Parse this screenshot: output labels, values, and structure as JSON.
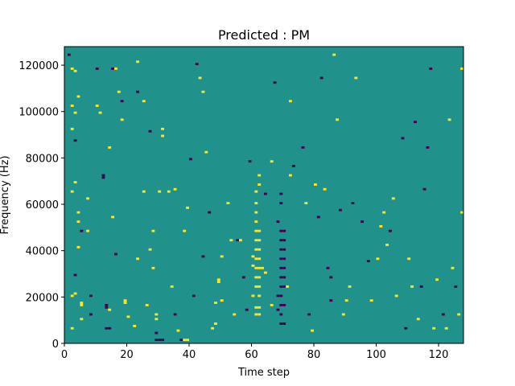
{
  "chart_data": {
    "type": "heatmap",
    "title": "Predicted : PM",
    "xlabel": "Time step",
    "ylabel": "Frequency (Hz)",
    "xlim": [
      0,
      128
    ],
    "ylim": [
      0,
      128000
    ],
    "x_ticks": [
      0,
      20,
      40,
      60,
      80,
      100,
      120
    ],
    "y_ticks": [
      0,
      20000,
      40000,
      60000,
      80000,
      100000,
      120000
    ],
    "grid": false,
    "legend": "none",
    "colors": {
      "background": "#21918c",
      "high": "#fde725",
      "low": "#440154",
      "frame": "#000000"
    },
    "n_frequency_bins": 128,
    "frequency_bin_width_hz": 1000,
    "cells": [
      {
        "t": 1,
        "f": 124,
        "v": "low"
      },
      {
        "t": 2,
        "f": 118,
        "v": "high"
      },
      {
        "t": 3,
        "f": 117,
        "v": "high"
      },
      {
        "t": 4,
        "f": 106,
        "v": "high"
      },
      {
        "t": 2,
        "f": 102,
        "v": "high"
      },
      {
        "t": 3,
        "f": 99,
        "v": "high"
      },
      {
        "t": 2,
        "f": 92,
        "v": "high"
      },
      {
        "t": 3,
        "f": 87,
        "v": "low"
      },
      {
        "t": 3,
        "f": 69,
        "v": "high"
      },
      {
        "t": 2,
        "f": 65,
        "v": "high"
      },
      {
        "t": 4,
        "f": 56,
        "v": "high"
      },
      {
        "t": 4,
        "f": 52,
        "v": "high"
      },
      {
        "t": 5,
        "f": 48,
        "v": "low"
      },
      {
        "t": 4,
        "f": 41,
        "v": "high"
      },
      {
        "t": 3,
        "f": 29,
        "v": "low"
      },
      {
        "t": 3,
        "f": 21,
        "v": "high"
      },
      {
        "t": 2,
        "f": 20,
        "v": "high"
      },
      {
        "t": 5,
        "f": 17,
        "v": "high"
      },
      {
        "t": 5,
        "f": 16,
        "v": "high"
      },
      {
        "t": 2,
        "f": 6,
        "v": "high"
      },
      {
        "t": 5,
        "f": 10,
        "v": "high"
      },
      {
        "t": 7,
        "f": 48,
        "v": "high"
      },
      {
        "t": 7,
        "f": 62,
        "v": "high"
      },
      {
        "t": 8,
        "f": 12,
        "v": "low"
      },
      {
        "t": 8,
        "f": 20,
        "v": "low"
      },
      {
        "t": 10,
        "f": 102,
        "v": "high"
      },
      {
        "t": 10,
        "f": 118,
        "v": "low"
      },
      {
        "t": 11,
        "f": 99,
        "v": "high"
      },
      {
        "t": 12,
        "f": 72,
        "v": "low"
      },
      {
        "t": 12,
        "f": 71,
        "v": "low"
      },
      {
        "t": 13,
        "f": 16,
        "v": "low"
      },
      {
        "t": 13,
        "f": 15,
        "v": "low"
      },
      {
        "t": 13,
        "f": 6,
        "v": "low"
      },
      {
        "t": 14,
        "f": 14,
        "v": "high"
      },
      {
        "t": 14,
        "f": 6,
        "v": "low"
      },
      {
        "t": 15,
        "f": 118,
        "v": "low"
      },
      {
        "t": 16,
        "f": 118,
        "v": "high"
      },
      {
        "t": 14,
        "f": 84,
        "v": "high"
      },
      {
        "t": 15,
        "f": 54,
        "v": "high"
      },
      {
        "t": 16,
        "f": 38,
        "v": "low"
      },
      {
        "t": 17,
        "f": 108,
        "v": "high"
      },
      {
        "t": 18,
        "f": 104,
        "v": "low"
      },
      {
        "t": 18,
        "f": 96,
        "v": "high"
      },
      {
        "t": 19,
        "f": 18,
        "v": "high"
      },
      {
        "t": 19,
        "f": 17,
        "v": "high"
      },
      {
        "t": 20,
        "f": 11,
        "v": "high"
      },
      {
        "t": 22,
        "f": 7,
        "v": "high"
      },
      {
        "t": 23,
        "f": 36,
        "v": "high"
      },
      {
        "t": 23,
        "f": 108,
        "v": "low"
      },
      {
        "t": 23,
        "f": 121,
        "v": "high"
      },
      {
        "t": 25,
        "f": 104,
        "v": "high"
      },
      {
        "t": 25,
        "f": 65,
        "v": "high"
      },
      {
        "t": 26,
        "f": 16,
        "v": "high"
      },
      {
        "t": 27,
        "f": 91,
        "v": "low"
      },
      {
        "t": 27,
        "f": 40,
        "v": "high"
      },
      {
        "t": 28,
        "f": 48,
        "v": "high"
      },
      {
        "t": 28,
        "f": 32,
        "v": "high"
      },
      {
        "t": 29,
        "f": 12,
        "v": "high"
      },
      {
        "t": 29,
        "f": 10,
        "v": "high"
      },
      {
        "t": 29,
        "f": 4,
        "v": "low"
      },
      {
        "t": 29,
        "f": 1,
        "v": "low"
      },
      {
        "t": 30,
        "f": 1,
        "v": "low"
      },
      {
        "t": 31,
        "f": 1,
        "v": "low"
      },
      {
        "t": 30,
        "f": 65,
        "v": "high"
      },
      {
        "t": 31,
        "f": 92,
        "v": "high"
      },
      {
        "t": 31,
        "f": 89,
        "v": "high"
      },
      {
        "t": 33,
        "f": 65,
        "v": "high"
      },
      {
        "t": 34,
        "f": 24,
        "v": "high"
      },
      {
        "t": 35,
        "f": 66,
        "v": "high"
      },
      {
        "t": 35,
        "f": 12,
        "v": "low"
      },
      {
        "t": 36,
        "f": 5,
        "v": "high"
      },
      {
        "t": 37,
        "f": 1,
        "v": "low"
      },
      {
        "t": 38,
        "f": 1,
        "v": "high"
      },
      {
        "t": 39,
        "f": 1,
        "v": "high"
      },
      {
        "t": 38,
        "f": 48,
        "v": "high"
      },
      {
        "t": 39,
        "f": 58,
        "v": "high"
      },
      {
        "t": 40,
        "f": 79,
        "v": "low"
      },
      {
        "t": 41,
        "f": 20,
        "v": "low"
      },
      {
        "t": 42,
        "f": 120,
        "v": "low"
      },
      {
        "t": 43,
        "f": 114,
        "v": "high"
      },
      {
        "t": 44,
        "f": 108,
        "v": "high"
      },
      {
        "t": 44,
        "f": 37,
        "v": "low"
      },
      {
        "t": 45,
        "f": 82,
        "v": "high"
      },
      {
        "t": 46,
        "f": 56,
        "v": "low"
      },
      {
        "t": 47,
        "f": 6,
        "v": "high"
      },
      {
        "t": 48,
        "f": 8,
        "v": "high"
      },
      {
        "t": 48,
        "f": 17,
        "v": "high"
      },
      {
        "t": 49,
        "f": 26,
        "v": "high"
      },
      {
        "t": 49,
        "f": 27,
        "v": "high"
      },
      {
        "t": 50,
        "f": 18,
        "v": "high"
      },
      {
        "t": 50,
        "f": 37,
        "v": "high"
      },
      {
        "t": 52,
        "f": 60,
        "v": "high"
      },
      {
        "t": 53,
        "f": 44,
        "v": "high"
      },
      {
        "t": 54,
        "f": 12,
        "v": "high"
      },
      {
        "t": 55,
        "f": 44,
        "v": "low"
      },
      {
        "t": 56,
        "f": 44,
        "v": "high"
      },
      {
        "t": 57,
        "f": 28,
        "v": "low"
      },
      {
        "t": 58,
        "f": 14,
        "v": "low"
      },
      {
        "t": 59,
        "f": 78,
        "v": "low"
      },
      {
        "t": 60,
        "f": 37,
        "v": "high"
      },
      {
        "t": 60,
        "f": 33,
        "v": "high"
      },
      {
        "t": 60,
        "f": 20,
        "v": "high"
      },
      {
        "t": 61,
        "f": 12,
        "v": "high"
      },
      {
        "t": 61,
        "f": 15,
        "v": "high"
      },
      {
        "t": 61,
        "f": 24,
        "v": "high"
      },
      {
        "t": 61,
        "f": 28,
        "v": "high"
      },
      {
        "t": 61,
        "f": 32,
        "v": "high"
      },
      {
        "t": 61,
        "f": 36,
        "v": "high"
      },
      {
        "t": 61,
        "f": 40,
        "v": "high"
      },
      {
        "t": 61,
        "f": 44,
        "v": "high"
      },
      {
        "t": 61,
        "f": 48,
        "v": "high"
      },
      {
        "t": 61,
        "f": 52,
        "v": "high"
      },
      {
        "t": 61,
        "f": 56,
        "v": "high"
      },
      {
        "t": 61,
        "f": 60,
        "v": "high"
      },
      {
        "t": 61,
        "f": 65,
        "v": "high"
      },
      {
        "t": 62,
        "f": 12,
        "v": "high"
      },
      {
        "t": 62,
        "f": 15,
        "v": "high"
      },
      {
        "t": 62,
        "f": 20,
        "v": "high"
      },
      {
        "t": 62,
        "f": 24,
        "v": "high"
      },
      {
        "t": 62,
        "f": 28,
        "v": "high"
      },
      {
        "t": 62,
        "f": 32,
        "v": "high"
      },
      {
        "t": 62,
        "f": 36,
        "v": "high"
      },
      {
        "t": 62,
        "f": 40,
        "v": "high"
      },
      {
        "t": 62,
        "f": 44,
        "v": "high"
      },
      {
        "t": 62,
        "f": 48,
        "v": "high"
      },
      {
        "t": 62,
        "f": 68,
        "v": "high"
      },
      {
        "t": 62,
        "f": 72,
        "v": "high"
      },
      {
        "t": 63,
        "f": 32,
        "v": "high"
      },
      {
        "t": 64,
        "f": 30,
        "v": "high"
      },
      {
        "t": 64,
        "f": 64,
        "v": "low"
      },
      {
        "t": 66,
        "f": 78,
        "v": "high"
      },
      {
        "t": 66,
        "f": 16,
        "v": "high"
      },
      {
        "t": 67,
        "f": 112,
        "v": "low"
      },
      {
        "t": 68,
        "f": 14,
        "v": "low"
      },
      {
        "t": 68,
        "f": 20,
        "v": "low"
      },
      {
        "t": 68,
        "f": 52,
        "v": "low"
      },
      {
        "t": 69,
        "f": 8,
        "v": "low"
      },
      {
        "t": 69,
        "f": 12,
        "v": "low"
      },
      {
        "t": 69,
        "f": 16,
        "v": "low"
      },
      {
        "t": 69,
        "f": 20,
        "v": "low"
      },
      {
        "t": 69,
        "f": 24,
        "v": "low"
      },
      {
        "t": 69,
        "f": 28,
        "v": "low"
      },
      {
        "t": 69,
        "f": 32,
        "v": "low"
      },
      {
        "t": 69,
        "f": 36,
        "v": "low"
      },
      {
        "t": 69,
        "f": 40,
        "v": "low"
      },
      {
        "t": 69,
        "f": 44,
        "v": "low"
      },
      {
        "t": 69,
        "f": 48,
        "v": "low"
      },
      {
        "t": 69,
        "f": 60,
        "v": "low"
      },
      {
        "t": 69,
        "f": 64,
        "v": "low"
      },
      {
        "t": 70,
        "f": 8,
        "v": "low"
      },
      {
        "t": 70,
        "f": 16,
        "v": "low"
      },
      {
        "t": 70,
        "f": 24,
        "v": "low"
      },
      {
        "t": 70,
        "f": 28,
        "v": "low"
      },
      {
        "t": 70,
        "f": 32,
        "v": "low"
      },
      {
        "t": 70,
        "f": 36,
        "v": "low"
      },
      {
        "t": 70,
        "f": 40,
        "v": "low"
      },
      {
        "t": 70,
        "f": 44,
        "v": "low"
      },
      {
        "t": 70,
        "f": 48,
        "v": "low"
      },
      {
        "t": 71,
        "f": 24,
        "v": "high"
      },
      {
        "t": 72,
        "f": 72,
        "v": "high"
      },
      {
        "t": 72,
        "f": 104,
        "v": "high"
      },
      {
        "t": 73,
        "f": 76,
        "v": "low"
      },
      {
        "t": 76,
        "f": 84,
        "v": "low"
      },
      {
        "t": 77,
        "f": 60,
        "v": "high"
      },
      {
        "t": 78,
        "f": 12,
        "v": "low"
      },
      {
        "t": 79,
        "f": 5,
        "v": "high"
      },
      {
        "t": 80,
        "f": 68,
        "v": "high"
      },
      {
        "t": 81,
        "f": 54,
        "v": "low"
      },
      {
        "t": 82,
        "f": 114,
        "v": "low"
      },
      {
        "t": 83,
        "f": 66,
        "v": "high"
      },
      {
        "t": 84,
        "f": 32,
        "v": "low"
      },
      {
        "t": 85,
        "f": 28,
        "v": "low"
      },
      {
        "t": 85,
        "f": 18,
        "v": "low"
      },
      {
        "t": 86,
        "f": 124,
        "v": "high"
      },
      {
        "t": 87,
        "f": 96,
        "v": "high"
      },
      {
        "t": 88,
        "f": 57,
        "v": "low"
      },
      {
        "t": 89,
        "f": 12,
        "v": "high"
      },
      {
        "t": 90,
        "f": 18,
        "v": "high"
      },
      {
        "t": 91,
        "f": 24,
        "v": "high"
      },
      {
        "t": 92,
        "f": 60,
        "v": "low"
      },
      {
        "t": 93,
        "f": 114,
        "v": "high"
      },
      {
        "t": 95,
        "f": 52,
        "v": "low"
      },
      {
        "t": 97,
        "f": 35,
        "v": "low"
      },
      {
        "t": 98,
        "f": 18,
        "v": "high"
      },
      {
        "t": 100,
        "f": 36,
        "v": "high"
      },
      {
        "t": 101,
        "f": 50,
        "v": "high"
      },
      {
        "t": 102,
        "f": 56,
        "v": "high"
      },
      {
        "t": 103,
        "f": 42,
        "v": "high"
      },
      {
        "t": 104,
        "f": 48,
        "v": "low"
      },
      {
        "t": 105,
        "f": 62,
        "v": "high"
      },
      {
        "t": 106,
        "f": 20,
        "v": "high"
      },
      {
        "t": 108,
        "f": 88,
        "v": "low"
      },
      {
        "t": 109,
        "f": 6,
        "v": "low"
      },
      {
        "t": 110,
        "f": 36,
        "v": "high"
      },
      {
        "t": 111,
        "f": 24,
        "v": "high"
      },
      {
        "t": 112,
        "f": 95,
        "v": "low"
      },
      {
        "t": 113,
        "f": 10,
        "v": "high"
      },
      {
        "t": 114,
        "f": 24,
        "v": "low"
      },
      {
        "t": 115,
        "f": 66,
        "v": "low"
      },
      {
        "t": 116,
        "f": 84,
        "v": "low"
      },
      {
        "t": 117,
        "f": 118,
        "v": "low"
      },
      {
        "t": 118,
        "f": 6,
        "v": "high"
      },
      {
        "t": 119,
        "f": 27,
        "v": "high"
      },
      {
        "t": 121,
        "f": 12,
        "v": "low"
      },
      {
        "t": 122,
        "f": 6,
        "v": "high"
      },
      {
        "t": 123,
        "f": 96,
        "v": "high"
      },
      {
        "t": 124,
        "f": 32,
        "v": "high"
      },
      {
        "t": 125,
        "f": 24,
        "v": "low"
      },
      {
        "t": 126,
        "f": 12,
        "v": "high"
      },
      {
        "t": 127,
        "f": 118,
        "v": "high"
      },
      {
        "t": 127,
        "f": 56,
        "v": "high"
      }
    ]
  }
}
